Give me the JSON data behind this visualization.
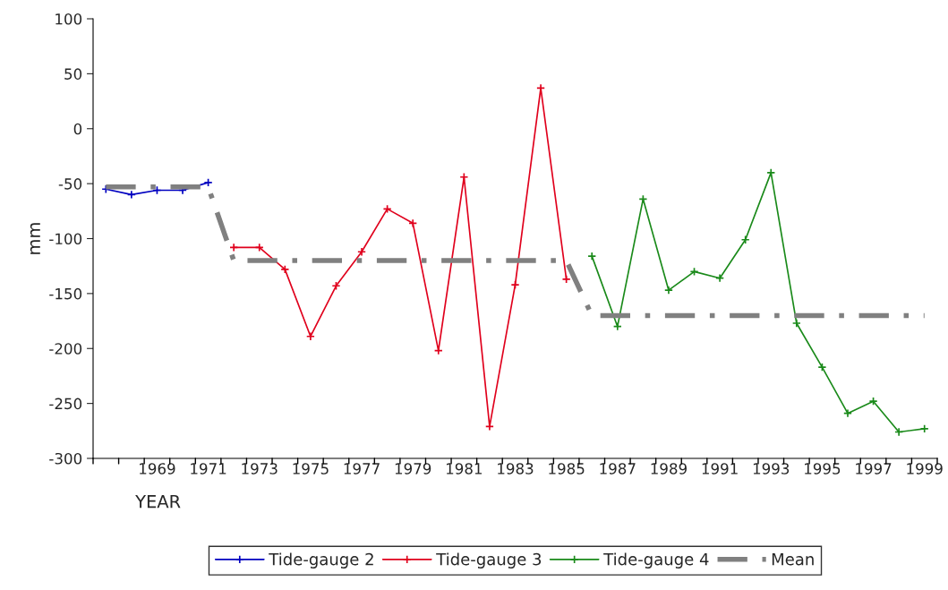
{
  "chart_data": {
    "type": "line",
    "xlabel": "YEAR",
    "ylabel": "mm",
    "categories": [
      null,
      null,
      "1969",
      null,
      "1971",
      null,
      "1973",
      null,
      "1975",
      null,
      "1977",
      null,
      "1979",
      null,
      "1981",
      null,
      "1983",
      null,
      "1985",
      null,
      "1987",
      null,
      "1989",
      null,
      "1991",
      null,
      "1993",
      null,
      "1995",
      null,
      "1997",
      null,
      "1999"
    ],
    "ylim": [
      -300,
      100
    ],
    "yticks": [
      -300,
      -250,
      -200,
      -150,
      -100,
      -50,
      0,
      50,
      100
    ],
    "grid": false,
    "legend": "bottom",
    "series": [
      {
        "name": "Tide-gauge 2",
        "color": "#0000c0",
        "marker": "cross",
        "line_style": "solid",
        "values": [
          -55,
          -60,
          -56,
          -56,
          -49,
          null,
          null,
          null,
          null,
          null,
          null,
          null,
          null,
          null,
          null,
          null,
          null,
          null,
          null,
          null,
          null,
          null,
          null,
          null,
          null,
          null,
          null,
          null,
          null,
          null,
          null,
          null,
          null
        ]
      },
      {
        "name": "Tide-gauge 3",
        "color": "#e0001c",
        "marker": "cross",
        "line_style": "solid",
        "values": [
          null,
          null,
          null,
          null,
          null,
          -108,
          -108,
          -128,
          -189,
          -143,
          -112,
          -73,
          -86,
          -202,
          -44,
          -271,
          -142,
          37,
          -137,
          null,
          null,
          null,
          null,
          null,
          null,
          null,
          null,
          null,
          null,
          null,
          null,
          null,
          null
        ]
      },
      {
        "name": "Tide-gauge 4",
        "color": "#1a8a1a",
        "marker": "cross",
        "line_style": "solid",
        "values": [
          null,
          null,
          null,
          null,
          null,
          null,
          null,
          null,
          null,
          null,
          null,
          null,
          null,
          null,
          null,
          null,
          null,
          null,
          null,
          -116,
          -180,
          -64,
          -147,
          -130,
          -136,
          -101,
          -40,
          -177,
          -217,
          -259,
          -248,
          -276,
          -273
        ]
      },
      {
        "name": "Mean",
        "color": "#808080",
        "marker": "none",
        "line_style": "dashed",
        "values": [
          -53,
          -53,
          -53,
          -53,
          -53,
          -120,
          -120,
          -120,
          -120,
          -120,
          -120,
          -120,
          -120,
          -120,
          -120,
          -120,
          -120,
          -120,
          -120,
          -170,
          -170,
          -170,
          -170,
          -170,
          -170,
          -170,
          -170,
          -170,
          -170,
          -170,
          -170,
          -170,
          -170
        ]
      }
    ]
  }
}
